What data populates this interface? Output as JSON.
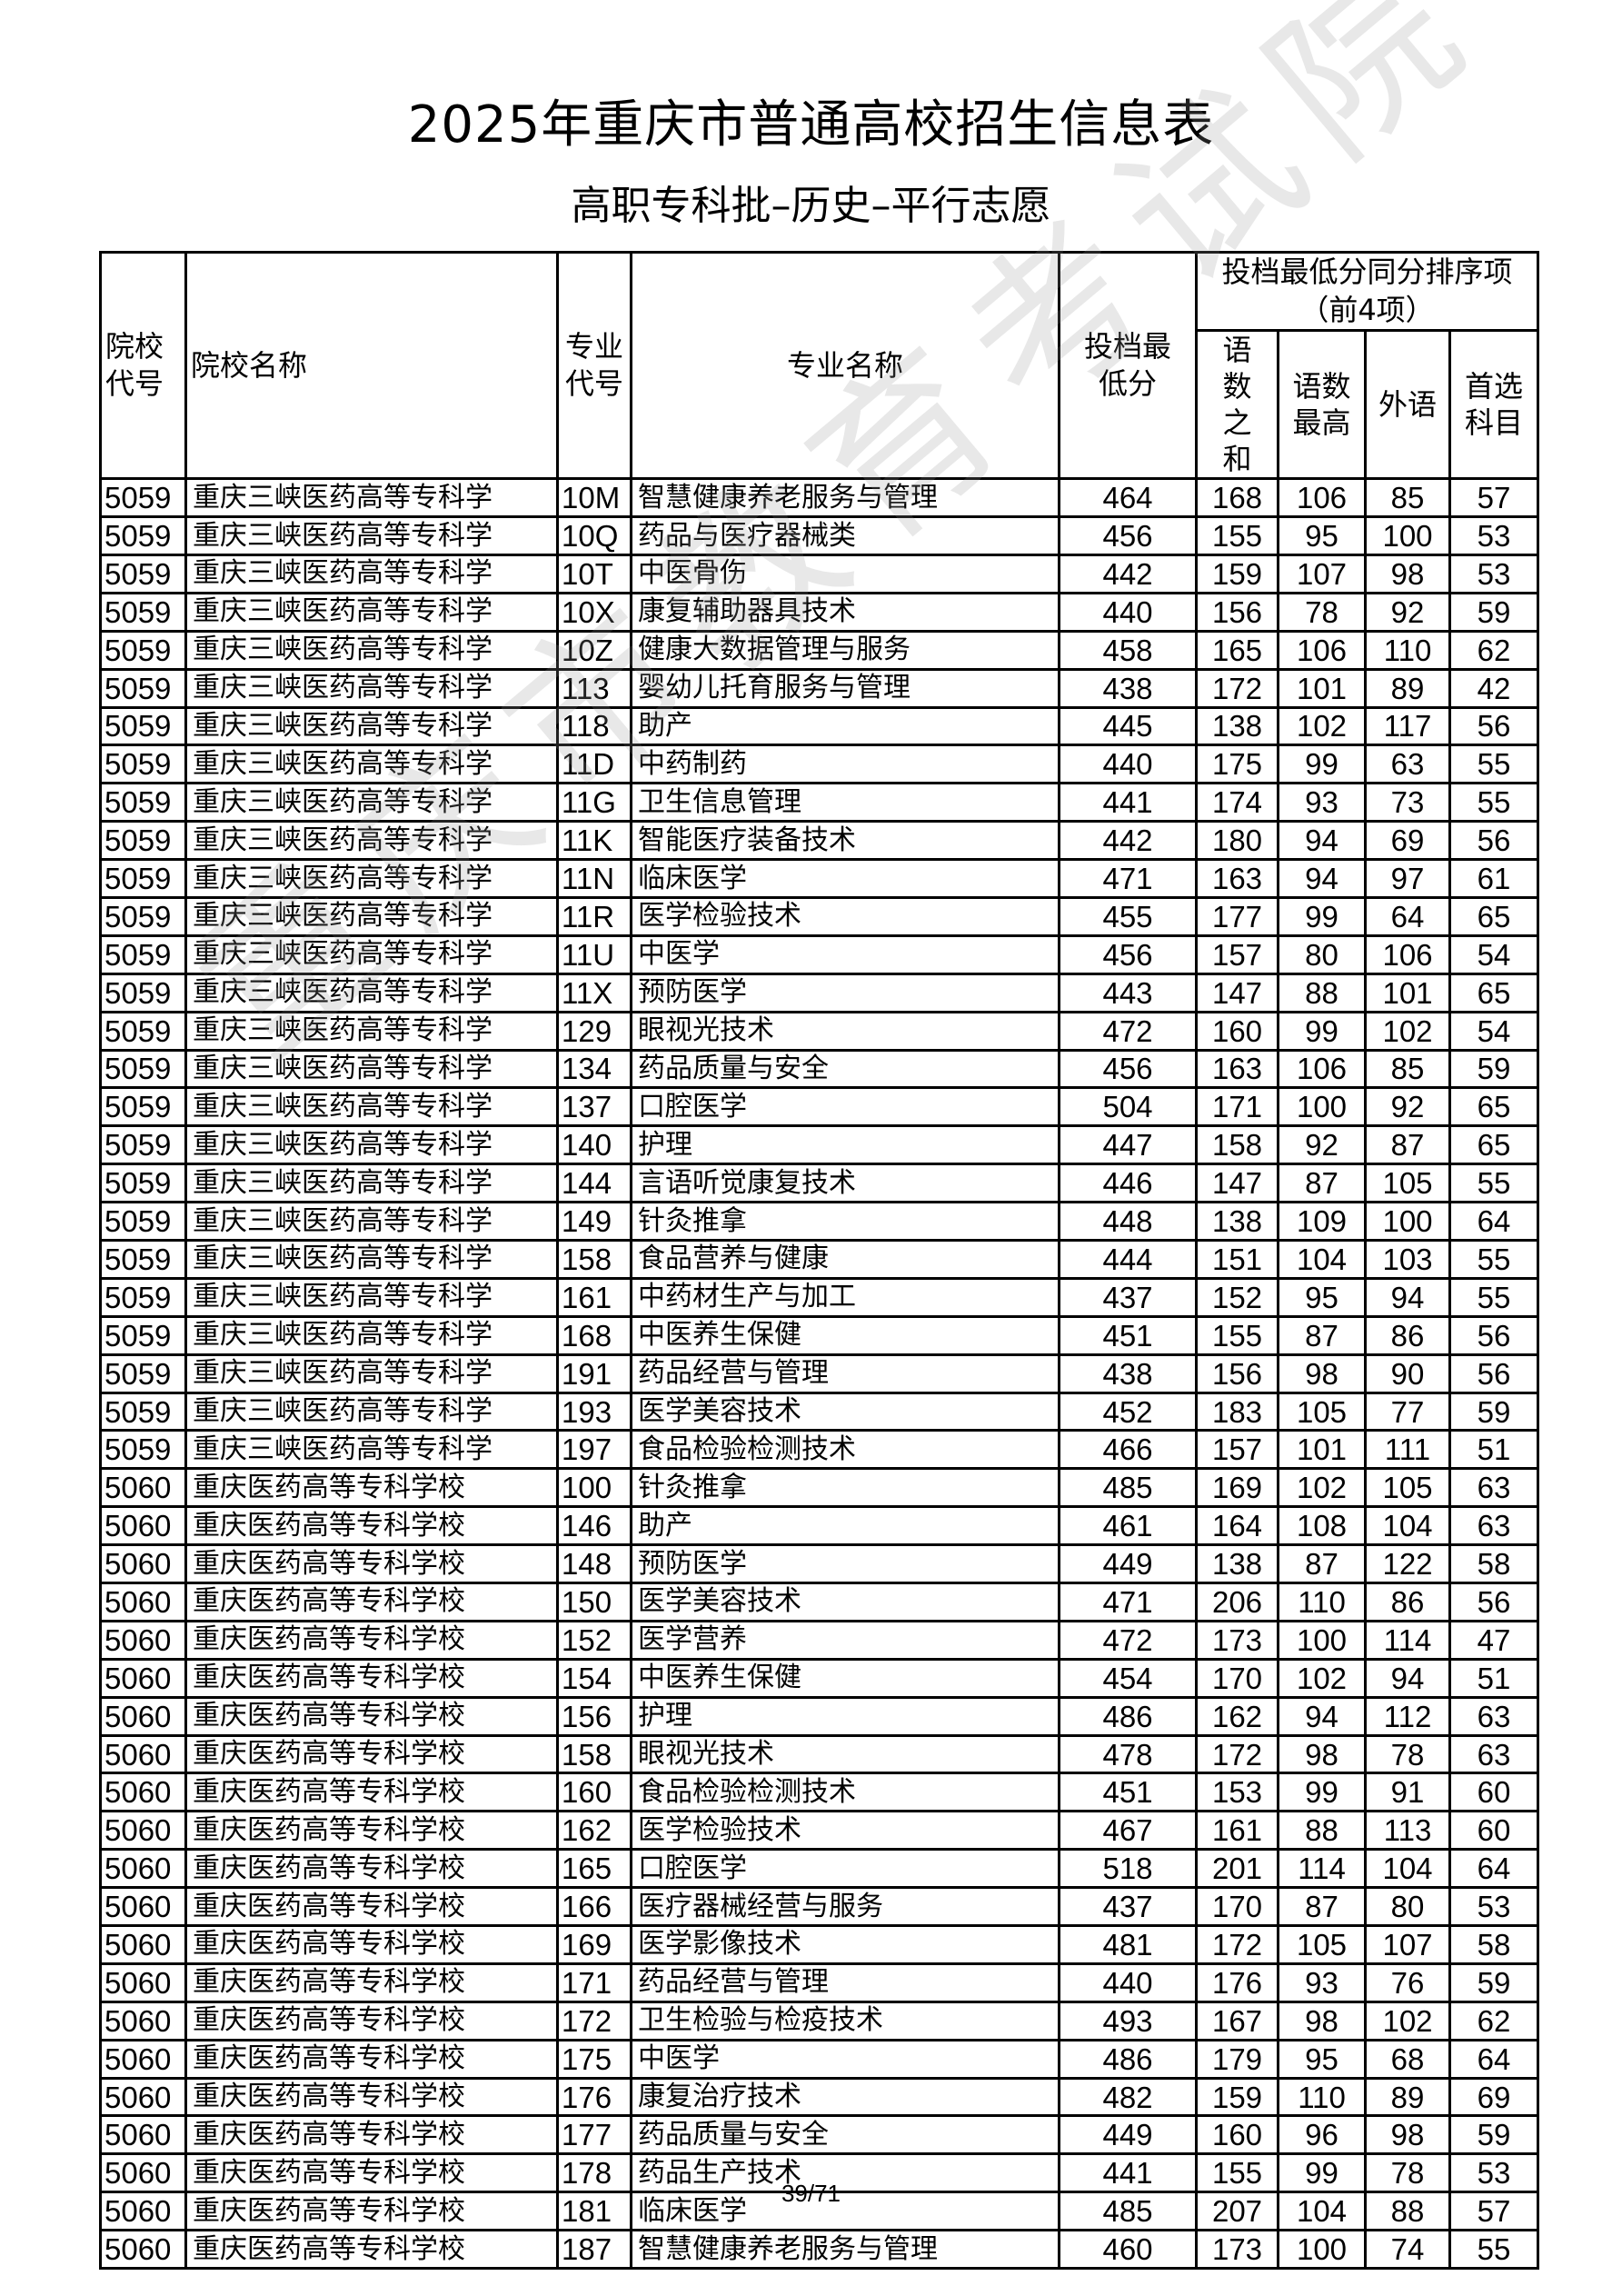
{
  "title": "2025年重庆市普通高校招生信息表",
  "subtitle": "高职专科批–历史–平行志愿",
  "watermark": "重庆市教育考试院",
  "page_number": "39/71",
  "headers": {
    "school_code": "院校代号",
    "school_name": "院校名称",
    "major_code": "专业代号",
    "major_name": "专业名称",
    "min_score": "投档最低分",
    "tiebreak_group": "投档最低分同分排序项（前4项）",
    "tiebreak": [
      "语数之和",
      "语数最高",
      "外语",
      "首选科目"
    ]
  },
  "rows": [
    [
      "5059",
      "重庆三峡医药高等专科学",
      "10M",
      "智慧健康养老服务与管理",
      "464",
      "168",
      "106",
      "85",
      "57"
    ],
    [
      "5059",
      "重庆三峡医药高等专科学",
      "10Q",
      "药品与医疗器械类",
      "456",
      "155",
      "95",
      "100",
      "53"
    ],
    [
      "5059",
      "重庆三峡医药高等专科学",
      "10T",
      "中医骨伤",
      "442",
      "159",
      "107",
      "98",
      "53"
    ],
    [
      "5059",
      "重庆三峡医药高等专科学",
      "10X",
      "康复辅助器具技术",
      "440",
      "156",
      "78",
      "92",
      "59"
    ],
    [
      "5059",
      "重庆三峡医药高等专科学",
      "10Z",
      "健康大数据管理与服务",
      "458",
      "165",
      "106",
      "110",
      "62"
    ],
    [
      "5059",
      "重庆三峡医药高等专科学",
      "113",
      "婴幼儿托育服务与管理",
      "438",
      "172",
      "101",
      "89",
      "42"
    ],
    [
      "5059",
      "重庆三峡医药高等专科学",
      "118",
      "助产",
      "445",
      "138",
      "102",
      "117",
      "56"
    ],
    [
      "5059",
      "重庆三峡医药高等专科学",
      "11D",
      "中药制药",
      "440",
      "175",
      "99",
      "63",
      "55"
    ],
    [
      "5059",
      "重庆三峡医药高等专科学",
      "11G",
      "卫生信息管理",
      "441",
      "174",
      "93",
      "73",
      "55"
    ],
    [
      "5059",
      "重庆三峡医药高等专科学",
      "11K",
      "智能医疗装备技术",
      "442",
      "180",
      "94",
      "69",
      "56"
    ],
    [
      "5059",
      "重庆三峡医药高等专科学",
      "11N",
      "临床医学",
      "471",
      "163",
      "94",
      "97",
      "61"
    ],
    [
      "5059",
      "重庆三峡医药高等专科学",
      "11R",
      "医学检验技术",
      "455",
      "177",
      "99",
      "64",
      "65"
    ],
    [
      "5059",
      "重庆三峡医药高等专科学",
      "11U",
      "中医学",
      "456",
      "157",
      "80",
      "106",
      "54"
    ],
    [
      "5059",
      "重庆三峡医药高等专科学",
      "11X",
      "预防医学",
      "443",
      "147",
      "88",
      "101",
      "65"
    ],
    [
      "5059",
      "重庆三峡医药高等专科学",
      "129",
      "眼视光技术",
      "472",
      "160",
      "99",
      "102",
      "54"
    ],
    [
      "5059",
      "重庆三峡医药高等专科学",
      "134",
      "药品质量与安全",
      "456",
      "163",
      "106",
      "85",
      "59"
    ],
    [
      "5059",
      "重庆三峡医药高等专科学",
      "137",
      "口腔医学",
      "504",
      "171",
      "100",
      "92",
      "65"
    ],
    [
      "5059",
      "重庆三峡医药高等专科学",
      "140",
      "护理",
      "447",
      "158",
      "92",
      "87",
      "65"
    ],
    [
      "5059",
      "重庆三峡医药高等专科学",
      "144",
      "言语听觉康复技术",
      "446",
      "147",
      "87",
      "105",
      "55"
    ],
    [
      "5059",
      "重庆三峡医药高等专科学",
      "149",
      "针灸推拿",
      "448",
      "138",
      "109",
      "100",
      "64"
    ],
    [
      "5059",
      "重庆三峡医药高等专科学",
      "158",
      "食品营养与健康",
      "444",
      "151",
      "104",
      "103",
      "55"
    ],
    [
      "5059",
      "重庆三峡医药高等专科学",
      "161",
      "中药材生产与加工",
      "437",
      "152",
      "95",
      "94",
      "55"
    ],
    [
      "5059",
      "重庆三峡医药高等专科学",
      "168",
      "中医养生保健",
      "451",
      "155",
      "87",
      "86",
      "56"
    ],
    [
      "5059",
      "重庆三峡医药高等专科学",
      "191",
      "药品经营与管理",
      "438",
      "156",
      "98",
      "90",
      "56"
    ],
    [
      "5059",
      "重庆三峡医药高等专科学",
      "193",
      "医学美容技术",
      "452",
      "183",
      "105",
      "77",
      "59"
    ],
    [
      "5059",
      "重庆三峡医药高等专科学",
      "197",
      "食品检验检测技术",
      "466",
      "157",
      "101",
      "111",
      "51"
    ],
    [
      "5060",
      "重庆医药高等专科学校",
      "100",
      "针灸推拿",
      "485",
      "169",
      "102",
      "105",
      "63"
    ],
    [
      "5060",
      "重庆医药高等专科学校",
      "146",
      "助产",
      "461",
      "164",
      "108",
      "104",
      "63"
    ],
    [
      "5060",
      "重庆医药高等专科学校",
      "148",
      "预防医学",
      "449",
      "138",
      "87",
      "122",
      "58"
    ],
    [
      "5060",
      "重庆医药高等专科学校",
      "150",
      "医学美容技术",
      "471",
      "206",
      "110",
      "86",
      "56"
    ],
    [
      "5060",
      "重庆医药高等专科学校",
      "152",
      "医学营养",
      "472",
      "173",
      "100",
      "114",
      "47"
    ],
    [
      "5060",
      "重庆医药高等专科学校",
      "154",
      "中医养生保健",
      "454",
      "170",
      "102",
      "94",
      "51"
    ],
    [
      "5060",
      "重庆医药高等专科学校",
      "156",
      "护理",
      "486",
      "162",
      "94",
      "112",
      "63"
    ],
    [
      "5060",
      "重庆医药高等专科学校",
      "158",
      "眼视光技术",
      "478",
      "172",
      "98",
      "78",
      "63"
    ],
    [
      "5060",
      "重庆医药高等专科学校",
      "160",
      "食品检验检测技术",
      "451",
      "153",
      "99",
      "91",
      "60"
    ],
    [
      "5060",
      "重庆医药高等专科学校",
      "162",
      "医学检验技术",
      "467",
      "161",
      "88",
      "113",
      "60"
    ],
    [
      "5060",
      "重庆医药高等专科学校",
      "165",
      "口腔医学",
      "518",
      "201",
      "114",
      "104",
      "64"
    ],
    [
      "5060",
      "重庆医药高等专科学校",
      "166",
      "医疗器械经营与服务",
      "437",
      "170",
      "87",
      "80",
      "53"
    ],
    [
      "5060",
      "重庆医药高等专科学校",
      "169",
      "医学影像技术",
      "481",
      "172",
      "105",
      "107",
      "58"
    ],
    [
      "5060",
      "重庆医药高等专科学校",
      "171",
      "药品经营与管理",
      "440",
      "176",
      "93",
      "76",
      "59"
    ],
    [
      "5060",
      "重庆医药高等专科学校",
      "172",
      "卫生检验与检疫技术",
      "493",
      "167",
      "98",
      "102",
      "62"
    ],
    [
      "5060",
      "重庆医药高等专科学校",
      "175",
      "中医学",
      "486",
      "179",
      "95",
      "68",
      "64"
    ],
    [
      "5060",
      "重庆医药高等专科学校",
      "176",
      "康复治疗技术",
      "482",
      "159",
      "110",
      "89",
      "69"
    ],
    [
      "5060",
      "重庆医药高等专科学校",
      "177",
      "药品质量与安全",
      "449",
      "160",
      "96",
      "98",
      "59"
    ],
    [
      "5060",
      "重庆医药高等专科学校",
      "178",
      "药品生产技术",
      "441",
      "155",
      "99",
      "78",
      "53"
    ],
    [
      "5060",
      "重庆医药高等专科学校",
      "181",
      "临床医学",
      "485",
      "207",
      "104",
      "88",
      "57"
    ],
    [
      "5060",
      "重庆医药高等专科学校",
      "187",
      "智慧健康养老服务与管理",
      "460",
      "173",
      "100",
      "74",
      "55"
    ]
  ]
}
